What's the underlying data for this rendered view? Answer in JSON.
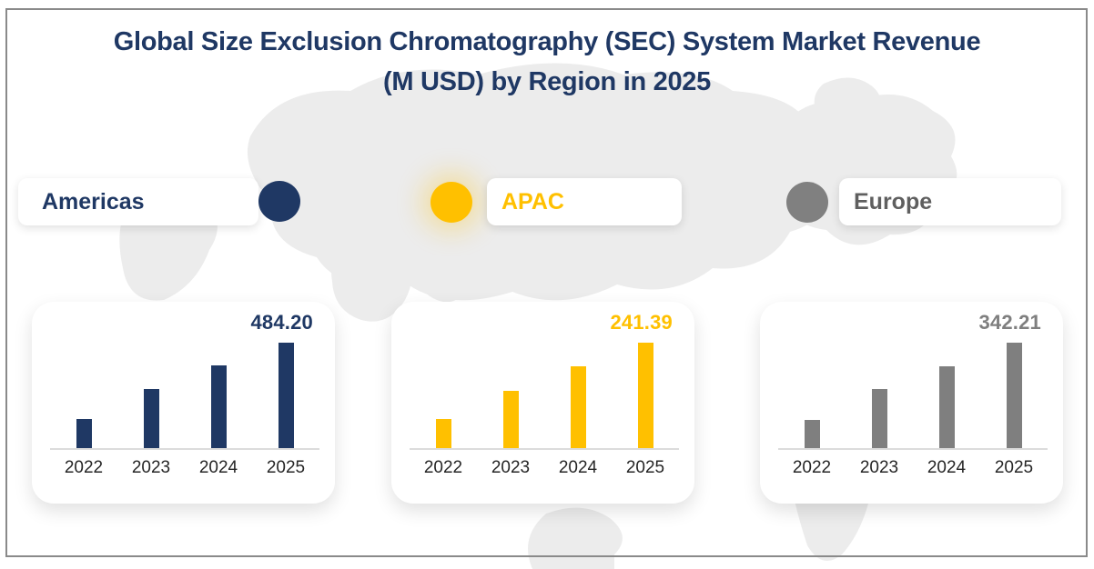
{
  "title": {
    "line1": "Global Size Exclusion Chromatography (SEC) System Market Revenue",
    "line2": "(M USD) by Region in 2025",
    "color": "#1f3864"
  },
  "legend": [
    {
      "label": "Americas",
      "label_color": "#1f3864",
      "marker_color": "#1f3864"
    },
    {
      "label": "APAC",
      "label_color": "#ffc000",
      "marker_color": "#ffc000"
    },
    {
      "label": "Europe",
      "label_color": "#5f5f5f",
      "marker_color": "#808080"
    }
  ],
  "chart_data": [
    {
      "type": "bar",
      "region": "Americas",
      "categories": [
        "2022",
        "2023",
        "2024",
        "2025"
      ],
      "values": [
        137,
        273,
        380,
        484.2
      ],
      "value_label_2025": "484.20",
      "color": "#1f3864",
      "xlabel": "",
      "ylabel": "",
      "grid": false,
      "legend_position": "none"
    },
    {
      "type": "bar",
      "region": "APAC",
      "categories": [
        "2022",
        "2023",
        "2024",
        "2025"
      ],
      "values": [
        68,
        132,
        188,
        241.39
      ],
      "value_label_2025": "241.39",
      "color": "#ffc000",
      "xlabel": "",
      "ylabel": "",
      "grid": false,
      "legend_position": "none"
    },
    {
      "type": "bar",
      "region": "Europe",
      "categories": [
        "2022",
        "2023",
        "2024",
        "2025"
      ],
      "values": [
        95,
        192,
        265,
        342.21
      ],
      "value_label_2025": "342.21",
      "color": "#7f7f7f",
      "xlabel": "",
      "ylabel": "",
      "grid": false,
      "legend_position": "none"
    }
  ]
}
